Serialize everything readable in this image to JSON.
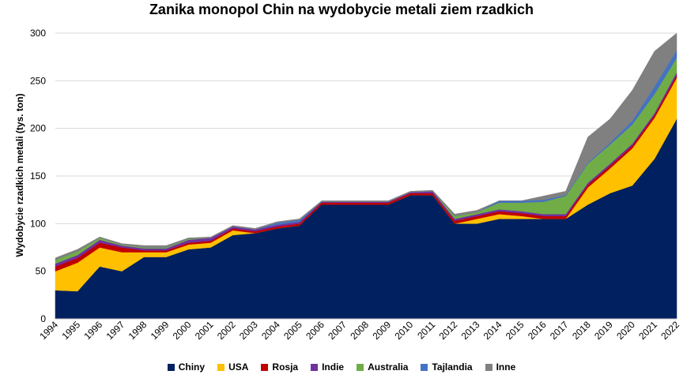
{
  "chart_data": {
    "type": "area",
    "title": "Zanika monopol Chin na wydobycie metali ziem rzadkich",
    "ylabel": "Wydobycie rzadkich metali (tys. ton)",
    "xlabel": "",
    "ylim": [
      0,
      300
    ],
    "yticks": [
      0,
      50,
      100,
      150,
      200,
      250,
      300
    ],
    "grid": true,
    "legend_position": "bottom",
    "stacked": true,
    "x": [
      "1994",
      "1995",
      "1996",
      "1997",
      "1998",
      "1999",
      "2000",
      "2001",
      "2002",
      "2003",
      "2004",
      "2005",
      "2006",
      "2007",
      "2008",
      "2009",
      "2010",
      "2011",
      "2012",
      "2013",
      "2014",
      "2015",
      "2016",
      "2017",
      "2018",
      "2019",
      "2020",
      "2021",
      "2022"
    ],
    "series": [
      {
        "name": "Chiny",
        "color": "#002060",
        "values": [
          30,
          29,
          55,
          50,
          65,
          65,
          73,
          75,
          88,
          90,
          95,
          98,
          120,
          120,
          120,
          120,
          130,
          130,
          100,
          100,
          105,
          105,
          105,
          105,
          120,
          132,
          140,
          168,
          210
        ]
      },
      {
        "name": "USA",
        "color": "#ffc000",
        "values": [
          20,
          30,
          20,
          20,
          5,
          5,
          5,
          5,
          5,
          0,
          0,
          0,
          0,
          0,
          0,
          0,
          0,
          0,
          0,
          5,
          5,
          3,
          0,
          0,
          18,
          26,
          39,
          43,
          43
        ]
      },
      {
        "name": "Rosja",
        "color": "#c00000",
        "values": [
          5,
          5,
          5,
          5,
          2,
          2,
          2,
          2,
          2,
          2,
          2,
          2,
          2,
          2,
          2,
          2,
          2,
          2,
          3,
          3,
          3,
          3,
          3,
          3,
          3,
          3,
          3,
          3,
          3
        ]
      },
      {
        "name": "Indie",
        "color": "#7030a0",
        "values": [
          3,
          3,
          3,
          2,
          2,
          2,
          3,
          3,
          2,
          2,
          2,
          2,
          1,
          1,
          1,
          1,
          1,
          2,
          2,
          2,
          2,
          2,
          2,
          2,
          2,
          2,
          2,
          2,
          3
        ]
      },
      {
        "name": "Australia",
        "color": "#70ad47",
        "values": [
          4,
          4,
          2,
          1,
          1,
          1,
          1,
          0,
          0,
          0,
          0,
          0,
          0,
          0,
          0,
          0,
          0,
          0,
          3,
          2,
          7,
          9,
          13,
          19,
          20,
          20,
          20,
          20,
          15
        ]
      },
      {
        "name": "Tajlandia",
        "color": "#4472c4",
        "values": [
          0,
          0,
          0,
          0,
          0,
          0,
          0,
          0,
          0,
          0,
          2,
          2,
          0,
          0,
          0,
          0,
          0,
          0,
          0,
          0,
          2,
          2,
          2,
          1,
          1,
          2,
          4,
          8,
          8
        ]
      },
      {
        "name": "Inne",
        "color": "#808080",
        "values": [
          2,
          2,
          1,
          1,
          2,
          2,
          1,
          1,
          1,
          1,
          1,
          1,
          1,
          1,
          1,
          1,
          1,
          1,
          2,
          2,
          0,
          0,
          4,
          4,
          27,
          25,
          32,
          37,
          18
        ]
      }
    ]
  }
}
